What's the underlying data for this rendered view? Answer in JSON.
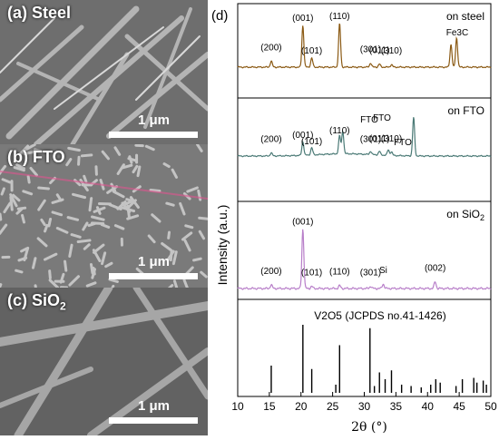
{
  "sem_panels": [
    {
      "label": "(a) Steel",
      "scale": "1 μm"
    },
    {
      "label": "(b) FTO",
      "scale": "1 μm"
    },
    {
      "label": "(c) SiO",
      "label_sub": "2",
      "scale": "1 μm"
    }
  ],
  "panel_d": {
    "label": "(d)",
    "y_axis_label": "Intensity (a.u.)",
    "x_axis_label": "2θ (°)"
  },
  "chart_data": {
    "type": "line",
    "xlim": [
      10,
      50
    ],
    "x_ticks": [
      10,
      15,
      20,
      25,
      30,
      35,
      40,
      45,
      50
    ],
    "xlabel": "2θ (°)",
    "ylabel": "Intensity (a.u.)",
    "panels": [
      {
        "title": "on steel",
        "color": "#8b5a14",
        "peaks": [
          {
            "x": 15.3,
            "h": 0.12,
            "label": "(200)"
          },
          {
            "x": 20.3,
            "h": 0.82,
            "label": "(001)"
          },
          {
            "x": 21.7,
            "h": 0.18,
            "label": "(101)"
          },
          {
            "x": 26.1,
            "h": 0.86,
            "label": "(110)"
          },
          {
            "x": 31.0,
            "h": 0.08,
            "label": "(301)"
          },
          {
            "x": 32.4,
            "h": 0.06,
            "label": "(011)"
          },
          {
            "x": 34.3,
            "h": 0.05,
            "label": "(310)"
          },
          {
            "x": 43.7,
            "h": 0.45,
            "label": "Fe3C"
          },
          {
            "x": 44.6,
            "h": 0.58,
            "label": "Fe3C"
          }
        ]
      },
      {
        "title": "on FTO",
        "color": "#4b7a76",
        "peaks": [
          {
            "x": 15.3,
            "h": 0.07,
            "label": "(200)"
          },
          {
            "x": 20.3,
            "h": 0.3,
            "label": "(001)"
          },
          {
            "x": 21.7,
            "h": 0.16,
            "label": "(101)"
          },
          {
            "x": 26.1,
            "h": 0.4,
            "label": "(110)"
          },
          {
            "x": 26.6,
            "h": 0.5,
            "label": "FTO"
          },
          {
            "x": 31.0,
            "h": 0.07,
            "label": "(301)"
          },
          {
            "x": 32.4,
            "h": 0.08,
            "label": "(011)"
          },
          {
            "x": 33.8,
            "h": 0.12,
            "label": "FTO"
          },
          {
            "x": 34.3,
            "h": 0.08,
            "label": "(310)"
          },
          {
            "x": 37.8,
            "h": 0.85,
            "label": "FTO"
          }
        ]
      },
      {
        "title": "on SiO",
        "title_sub": "2",
        "color": "#b87fc9",
        "peaks": [
          {
            "x": 15.3,
            "h": 0.05,
            "label": "(200)"
          },
          {
            "x": 20.3,
            "h": 0.8,
            "label": "(001)"
          },
          {
            "x": 21.7,
            "h": 0.03,
            "label": "(101)"
          },
          {
            "x": 26.1,
            "h": 0.04,
            "label": "(110)"
          },
          {
            "x": 31.0,
            "h": 0.03,
            "label": "(301)"
          },
          {
            "x": 33.0,
            "h": 0.06,
            "label": "Si"
          },
          {
            "x": 41.2,
            "h": 0.09,
            "label": "(002)"
          }
        ]
      },
      {
        "title": "V2O5 (JCPDS no.41-1426)",
        "type": "stick",
        "color": "#000000",
        "sticks": [
          {
            "x": 15.3,
            "h": 0.4
          },
          {
            "x": 20.3,
            "h": 1.0
          },
          {
            "x": 21.7,
            "h": 0.35
          },
          {
            "x": 25.5,
            "h": 0.12
          },
          {
            "x": 26.1,
            "h": 0.7
          },
          {
            "x": 30.9,
            "h": 0.95
          },
          {
            "x": 31.6,
            "h": 0.1
          },
          {
            "x": 32.4,
            "h": 0.3
          },
          {
            "x": 33.3,
            "h": 0.2
          },
          {
            "x": 34.3,
            "h": 0.33
          },
          {
            "x": 35.9,
            "h": 0.12
          },
          {
            "x": 37.4,
            "h": 0.1
          },
          {
            "x": 39.0,
            "h": 0.08
          },
          {
            "x": 40.5,
            "h": 0.12
          },
          {
            "x": 41.3,
            "h": 0.2
          },
          {
            "x": 42.0,
            "h": 0.15
          },
          {
            "x": 44.5,
            "h": 0.1
          },
          {
            "x": 45.5,
            "h": 0.2
          },
          {
            "x": 47.3,
            "h": 0.22
          },
          {
            "x": 47.8,
            "h": 0.15
          },
          {
            "x": 48.8,
            "h": 0.18
          },
          {
            "x": 49.3,
            "h": 0.12
          }
        ]
      }
    ]
  }
}
